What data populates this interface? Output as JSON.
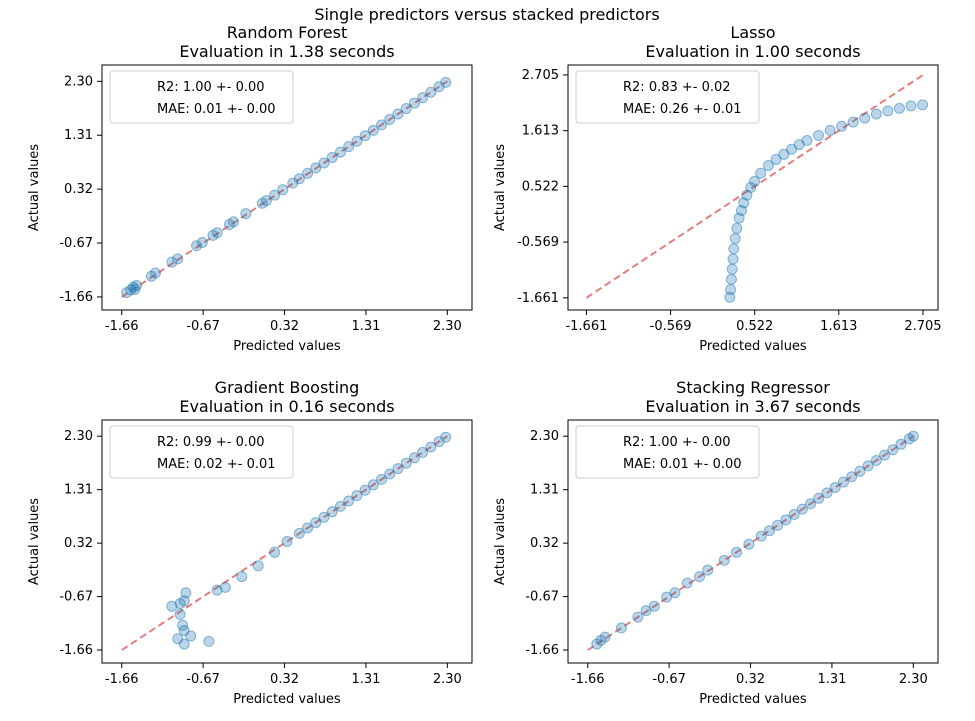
{
  "figure": {
    "suptitle": "Single predictors versus stacked predictors"
  },
  "style": {
    "point_color": "#1f77b4",
    "ideal_line_color": "#d62728"
  },
  "chart_data": [
    {
      "type": "scatter",
      "title": "Random Forest",
      "subtitle": "Evaluation in 1.38 seconds",
      "xlabel": "Predicted values",
      "ylabel": "Actual values",
      "ticks": [
        -1.66,
        -0.67,
        0.32,
        1.31,
        2.3
      ],
      "tick_labels": [
        "-1.66",
        "-0.67",
        "0.32",
        "1.31",
        "2.30"
      ],
      "lim": [
        -1.9,
        2.6
      ],
      "legend": [
        "R2: 1.00 +- 0.00",
        "MAE: 0.01 +- 0.00"
      ],
      "legend_loc": "upper left",
      "reference_line": [
        [
          -1.66,
          -1.66
        ],
        [
          2.3,
          2.3
        ]
      ],
      "points": [
        [
          -1.6,
          -1.58
        ],
        [
          -1.55,
          -1.53
        ],
        [
          -1.52,
          -1.48
        ],
        [
          -1.48,
          -1.45
        ],
        [
          -1.5,
          -1.52
        ],
        [
          -1.3,
          -1.28
        ],
        [
          -1.25,
          -1.22
        ],
        [
          -1.05,
          -1.02
        ],
        [
          -0.98,
          -0.96
        ],
        [
          -0.75,
          -0.72
        ],
        [
          -0.68,
          -0.66
        ],
        [
          -0.55,
          -0.53
        ],
        [
          -0.5,
          -0.48
        ],
        [
          -0.35,
          -0.33
        ],
        [
          -0.3,
          -0.28
        ],
        [
          -0.15,
          -0.13
        ],
        [
          0.05,
          0.06
        ],
        [
          0.1,
          0.11
        ],
        [
          0.2,
          0.21
        ],
        [
          0.3,
          0.31
        ],
        [
          0.42,
          0.43
        ],
        [
          0.5,
          0.51
        ],
        [
          0.6,
          0.61
        ],
        [
          0.7,
          0.71
        ],
        [
          0.8,
          0.8
        ],
        [
          0.9,
          0.9
        ],
        [
          1.0,
          1.0
        ],
        [
          1.1,
          1.1
        ],
        [
          1.2,
          1.2
        ],
        [
          1.3,
          1.3
        ],
        [
          1.4,
          1.4
        ],
        [
          1.5,
          1.5
        ],
        [
          1.6,
          1.6
        ],
        [
          1.7,
          1.7
        ],
        [
          1.8,
          1.8
        ],
        [
          1.9,
          1.9
        ],
        [
          2.0,
          2.0
        ],
        [
          2.1,
          2.1
        ],
        [
          2.2,
          2.2
        ],
        [
          2.28,
          2.28
        ]
      ]
    },
    {
      "type": "scatter",
      "title": "Lasso",
      "subtitle": "Evaluation in 1.00 seconds",
      "xlabel": "Predicted values",
      "ylabel": "Actual values",
      "ticks": [
        -1.661,
        -0.569,
        0.522,
        1.613,
        2.705
      ],
      "tick_labels": [
        "-1.661",
        "-0.569",
        "0.522",
        "1.613",
        "2.705"
      ],
      "lim": [
        -1.9,
        2.9
      ],
      "legend": [
        "R2: 0.83 +- 0.02",
        "MAE: 0.26 +- 0.01"
      ],
      "legend_loc": "upper left",
      "reference_line": [
        [
          -1.661,
          -1.661
        ],
        [
          2.705,
          2.705
        ]
      ],
      "points": [
        [
          0.2,
          -1.65
        ],
        [
          0.21,
          -1.5
        ],
        [
          0.22,
          -1.3
        ],
        [
          0.23,
          -1.1
        ],
        [
          0.24,
          -0.9
        ],
        [
          0.25,
          -0.7
        ],
        [
          0.27,
          -0.5
        ],
        [
          0.29,
          -0.3
        ],
        [
          0.32,
          -0.1
        ],
        [
          0.35,
          0.05
        ],
        [
          0.38,
          0.2
        ],
        [
          0.42,
          0.35
        ],
        [
          0.47,
          0.5
        ],
        [
          0.52,
          0.62
        ],
        [
          0.6,
          0.78
        ],
        [
          0.7,
          0.93
        ],
        [
          0.8,
          1.05
        ],
        [
          0.9,
          1.15
        ],
        [
          1.0,
          1.25
        ],
        [
          1.1,
          1.34
        ],
        [
          1.2,
          1.42
        ],
        [
          1.35,
          1.52
        ],
        [
          1.5,
          1.62
        ],
        [
          1.65,
          1.7
        ],
        [
          1.8,
          1.78
        ],
        [
          1.95,
          1.86
        ],
        [
          2.1,
          1.94
        ],
        [
          2.25,
          2.0
        ],
        [
          2.4,
          2.05
        ],
        [
          2.55,
          2.1
        ],
        [
          2.7,
          2.12
        ]
      ]
    },
    {
      "type": "scatter",
      "title": "Gradient Boosting",
      "subtitle": "Evaluation in 0.16 seconds",
      "xlabel": "Predicted values",
      "ylabel": "Actual values",
      "ticks": [
        -1.66,
        -0.67,
        0.32,
        1.31,
        2.3
      ],
      "tick_labels": [
        "-1.66",
        "-0.67",
        "0.32",
        "1.31",
        "2.30"
      ],
      "lim": [
        -1.9,
        2.6
      ],
      "legend": [
        "R2: 0.99 +- 0.00",
        "MAE: 0.02 +- 0.01"
      ],
      "legend_loc": "upper left",
      "reference_line": [
        [
          -1.66,
          -1.66
        ],
        [
          2.3,
          2.3
        ]
      ],
      "points": [
        [
          -1.05,
          -0.85
        ],
        [
          -0.95,
          -0.8
        ],
        [
          -0.9,
          -0.75
        ],
        [
          -0.88,
          -0.6
        ],
        [
          -0.95,
          -1.0
        ],
        [
          -0.92,
          -1.2
        ],
        [
          -0.9,
          -1.3
        ],
        [
          -0.98,
          -1.45
        ],
        [
          -0.82,
          -1.4
        ],
        [
          -0.9,
          -1.55
        ],
        [
          -0.6,
          -1.5
        ],
        [
          -0.5,
          -0.55
        ],
        [
          -0.4,
          -0.5
        ],
        [
          -0.2,
          -0.3
        ],
        [
          0.0,
          -0.1
        ],
        [
          0.2,
          0.15
        ],
        [
          0.35,
          0.35
        ],
        [
          0.5,
          0.5
        ],
        [
          0.6,
          0.6
        ],
        [
          0.7,
          0.7
        ],
        [
          0.8,
          0.8
        ],
        [
          0.9,
          0.9
        ],
        [
          1.0,
          1.0
        ],
        [
          1.1,
          1.1
        ],
        [
          1.2,
          1.2
        ],
        [
          1.3,
          1.3
        ],
        [
          1.4,
          1.4
        ],
        [
          1.5,
          1.5
        ],
        [
          1.6,
          1.6
        ],
        [
          1.7,
          1.7
        ],
        [
          1.8,
          1.8
        ],
        [
          1.9,
          1.9
        ],
        [
          2.0,
          2.0
        ],
        [
          2.1,
          2.1
        ],
        [
          2.2,
          2.2
        ],
        [
          2.28,
          2.28
        ]
      ]
    },
    {
      "type": "scatter",
      "title": "Stacking Regressor",
      "subtitle": "Evaluation in 3.67 seconds",
      "xlabel": "Predicted values",
      "ylabel": "Actual values",
      "ticks": [
        -1.66,
        -0.67,
        0.32,
        1.31,
        2.3
      ],
      "tick_labels": [
        "-1.66",
        "-0.67",
        "0.32",
        "1.31",
        "2.30"
      ],
      "lim": [
        -1.9,
        2.6
      ],
      "legend": [
        "R2: 1.00 +- 0.00",
        "MAE: 0.01 +- 0.00"
      ],
      "legend_loc": "upper left",
      "reference_line": [
        [
          -1.66,
          -1.66
        ],
        [
          2.3,
          2.3
        ]
      ],
      "points": [
        [
          -1.55,
          -1.55
        ],
        [
          -1.5,
          -1.48
        ],
        [
          -1.45,
          -1.42
        ],
        [
          -1.25,
          -1.25
        ],
        [
          -1.05,
          -1.05
        ],
        [
          -0.95,
          -0.93
        ],
        [
          -0.85,
          -0.85
        ],
        [
          -0.7,
          -0.68
        ],
        [
          -0.6,
          -0.6
        ],
        [
          -0.45,
          -0.42
        ],
        [
          -0.3,
          -0.3
        ],
        [
          -0.2,
          -0.18
        ],
        [
          0.0,
          0.0
        ],
        [
          0.15,
          0.15
        ],
        [
          0.3,
          0.3
        ],
        [
          0.45,
          0.45
        ],
        [
          0.55,
          0.55
        ],
        [
          0.65,
          0.65
        ],
        [
          0.75,
          0.75
        ],
        [
          0.85,
          0.85
        ],
        [
          0.95,
          0.95
        ],
        [
          1.05,
          1.05
        ],
        [
          1.15,
          1.15
        ],
        [
          1.25,
          1.25
        ],
        [
          1.35,
          1.35
        ],
        [
          1.45,
          1.45
        ],
        [
          1.55,
          1.55
        ],
        [
          1.65,
          1.65
        ],
        [
          1.75,
          1.75
        ],
        [
          1.85,
          1.85
        ],
        [
          1.95,
          1.95
        ],
        [
          2.05,
          2.05
        ],
        [
          2.15,
          2.15
        ],
        [
          2.25,
          2.25
        ],
        [
          2.3,
          2.3
        ]
      ]
    }
  ]
}
